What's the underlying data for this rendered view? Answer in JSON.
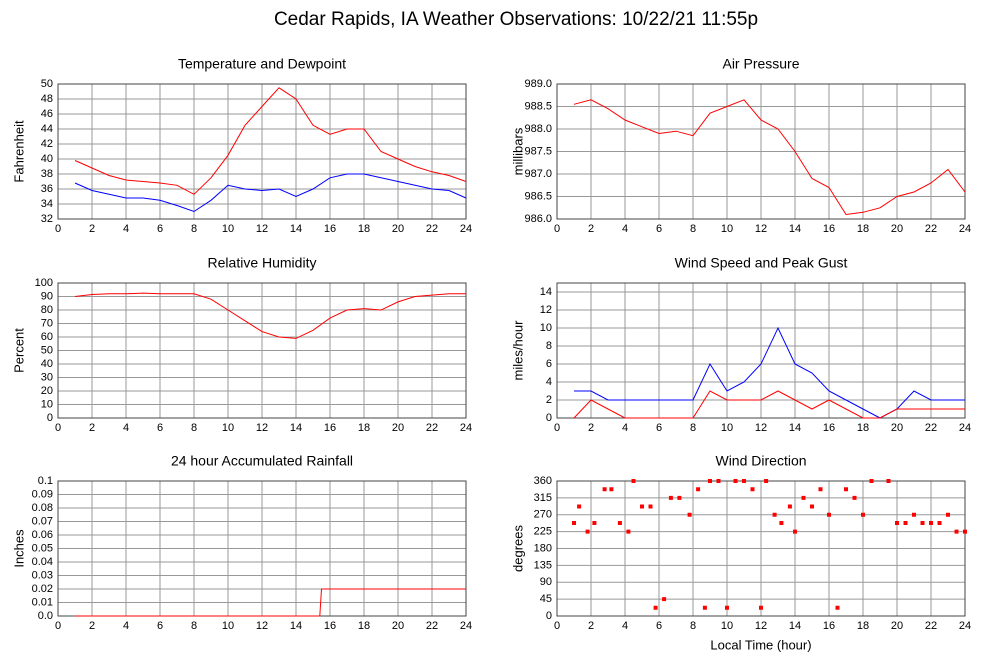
{
  "title": "Cedar Rapids, IA Weather Observations: 10/22/21 11:55p",
  "chart_data": [
    {
      "type": "line",
      "title": "Temperature and Dewpoint",
      "ylabel": "Fahrenheit",
      "x": [
        1,
        2,
        3,
        4,
        5,
        6,
        7,
        8,
        9,
        10,
        11,
        12,
        13,
        14,
        15,
        16,
        17,
        18,
        19,
        20,
        21,
        22,
        23,
        24
      ],
      "series": [
        {
          "color": "#ff0000",
          "values": [
            39.8,
            38.8,
            37.8,
            37.2,
            37.0,
            36.8,
            36.5,
            35.3,
            37.5,
            40.5,
            44.5,
            47.0,
            49.5,
            48.0,
            44.5,
            43.3,
            44.0,
            44.0,
            41.0,
            40.0,
            39.0,
            38.3,
            37.8,
            37.0
          ]
        },
        {
          "color": "#0000ff",
          "values": [
            36.8,
            35.8,
            35.3,
            34.8,
            34.8,
            34.5,
            33.8,
            33.0,
            34.5,
            36.5,
            36.0,
            35.8,
            36.0,
            35.0,
            36.0,
            37.5,
            38.0,
            38.0,
            37.5,
            37.0,
            36.5,
            36.0,
            35.8,
            34.8
          ]
        }
      ],
      "xlim": [
        0,
        24
      ],
      "xticks": [
        0,
        2,
        4,
        6,
        8,
        10,
        12,
        14,
        16,
        18,
        20,
        22,
        24
      ],
      "ylim": [
        32,
        50
      ],
      "yticks": [
        32,
        34,
        36,
        38,
        40,
        42,
        44,
        46,
        48,
        50
      ],
      "grid": true
    },
    {
      "type": "line",
      "title": "Air Pressure",
      "ylabel": "millibars",
      "x": [
        1,
        2,
        3,
        4,
        5,
        6,
        7,
        8,
        9,
        10,
        11,
        12,
        13,
        14,
        15,
        16,
        17,
        18,
        19,
        20,
        21,
        22,
        23,
        24
      ],
      "series": [
        {
          "color": "#ff0000",
          "values": [
            988.55,
            988.65,
            988.45,
            988.2,
            988.05,
            987.9,
            987.95,
            987.85,
            988.35,
            988.5,
            988.65,
            988.2,
            988.0,
            987.5,
            986.9,
            986.7,
            986.1,
            986.15,
            986.25,
            986.5,
            986.6,
            986.8,
            987.1,
            986.6
          ]
        }
      ],
      "xlim": [
        0,
        24
      ],
      "xticks": [
        0,
        2,
        4,
        6,
        8,
        10,
        12,
        14,
        16,
        18,
        20,
        22,
        24
      ],
      "ylim": [
        986,
        989
      ],
      "yticks": [
        {
          "value": 986,
          "label": "986.0"
        },
        986.5,
        {
          "value": 987,
          "label": "987.0"
        },
        987.5,
        {
          "value": 988,
          "label": "988.0"
        },
        988.5,
        {
          "value": 989,
          "label": "989.0"
        }
      ],
      "grid": true
    },
    {
      "type": "line",
      "title": "Relative Humidity",
      "ylabel": "Percent",
      "x": [
        1,
        2,
        3,
        4,
        5,
        6,
        7,
        8,
        9,
        10,
        11,
        12,
        13,
        14,
        15,
        16,
        17,
        18,
        19,
        20,
        21,
        22,
        23,
        24
      ],
      "series": [
        {
          "color": "#ff0000",
          "values": [
            90,
            91.5,
            92,
            92,
            92.5,
            92,
            92,
            92,
            88,
            80,
            72,
            64,
            60,
            59,
            65,
            74,
            80,
            81,
            80,
            86,
            90,
            91,
            92,
            92
          ]
        }
      ],
      "xlim": [
        0,
        24
      ],
      "xticks": [
        0,
        2,
        4,
        6,
        8,
        10,
        12,
        14,
        16,
        18,
        20,
        22,
        24
      ],
      "ylim": [
        0,
        100
      ],
      "yticks": [
        0,
        10,
        20,
        30,
        40,
        50,
        60,
        70,
        80,
        90,
        100
      ],
      "grid": true
    },
    {
      "type": "line",
      "title": "Wind Speed and Peak Gust",
      "ylabel": "miles/hour",
      "x": [
        1,
        2,
        3,
        4,
        5,
        6,
        7,
        8,
        9,
        10,
        11,
        12,
        13,
        14,
        15,
        16,
        17,
        18,
        19,
        20,
        21,
        22,
        23,
        24
      ],
      "series": [
        {
          "color": "#0000ff",
          "values": [
            3,
            3,
            2,
            2,
            2,
            2,
            2,
            2,
            6,
            3,
            4,
            6,
            10,
            6,
            5,
            3,
            2,
            1,
            0,
            1,
            3,
            2,
            2,
            2
          ]
        },
        {
          "color": "#ff0000",
          "values": [
            0,
            2,
            1,
            0,
            0,
            0,
            0,
            0,
            3,
            2,
            2,
            2,
            3,
            2,
            1,
            2,
            1,
            0,
            0,
            1,
            1,
            1,
            1,
            1
          ]
        }
      ],
      "xlim": [
        0,
        24
      ],
      "xticks": [
        0,
        2,
        4,
        6,
        8,
        10,
        12,
        14,
        16,
        18,
        20,
        22,
        24
      ],
      "ylim": [
        0,
        15
      ],
      "yticks": [
        0,
        2,
        4,
        6,
        8,
        10,
        12,
        14
      ],
      "grid": true
    },
    {
      "type": "line",
      "title": "24 hour Accumulated Rainfall",
      "ylabel": "Inches",
      "x": [
        1,
        15.4,
        15.5,
        24
      ],
      "series": [
        {
          "color": "#ff0000",
          "values": [
            0,
            0,
            0.02,
            0.02
          ]
        }
      ],
      "xlim": [
        0,
        24
      ],
      "xticks": [
        0,
        2,
        4,
        6,
        8,
        10,
        12,
        14,
        16,
        18,
        20,
        22,
        24
      ],
      "ylim": [
        0,
        0.1
      ],
      "yticks": [
        {
          "value": 0,
          "label": "0.0"
        },
        0.01,
        0.02,
        0.03,
        0.04,
        0.05,
        0.06,
        0.07,
        0.08,
        0.09,
        0.1
      ],
      "grid": true
    },
    {
      "type": "scatter",
      "title": "Wind Direction",
      "ylabel": "degrees",
      "xlabel": "Local Time (hour)",
      "x": [
        1,
        1.3,
        1.8,
        2.2,
        2.8,
        3.2,
        3.7,
        4.2,
        4.5,
        5,
        5.5,
        5.8,
        6.3,
        6.7,
        7.2,
        7.8,
        8.3,
        8.7,
        9,
        9.5,
        10,
        10.5,
        11,
        11.5,
        12,
        12.3,
        12.8,
        13.2,
        13.7,
        14,
        14.5,
        15,
        15.5,
        16,
        16.5,
        17,
        17.5,
        18,
        18.5,
        19.5,
        20,
        20.5,
        21,
        21.5,
        22,
        22.5,
        23,
        23.5,
        24
      ],
      "series": [
        {
          "color": "#ff0000",
          "values": [
            248,
            292,
            225,
            248,
            338,
            338,
            248,
            225,
            360,
            292,
            292,
            22,
            45,
            315,
            315,
            270,
            338,
            22,
            360,
            360,
            22,
            360,
            360,
            338,
            22,
            360,
            270,
            248,
            292,
            225,
            315,
            292,
            338,
            270,
            22,
            338,
            315,
            270,
            360,
            360,
            248,
            248,
            270,
            248,
            248,
            248,
            270,
            225,
            225
          ]
        }
      ],
      "xlim": [
        0,
        24
      ],
      "xticks": [
        0,
        2,
        4,
        6,
        8,
        10,
        12,
        14,
        16,
        18,
        20,
        22,
        24
      ],
      "ylim": [
        0,
        360
      ],
      "yticks": [
        0,
        45,
        90,
        135,
        180,
        225,
        270,
        315,
        360
      ],
      "grid": true
    }
  ]
}
